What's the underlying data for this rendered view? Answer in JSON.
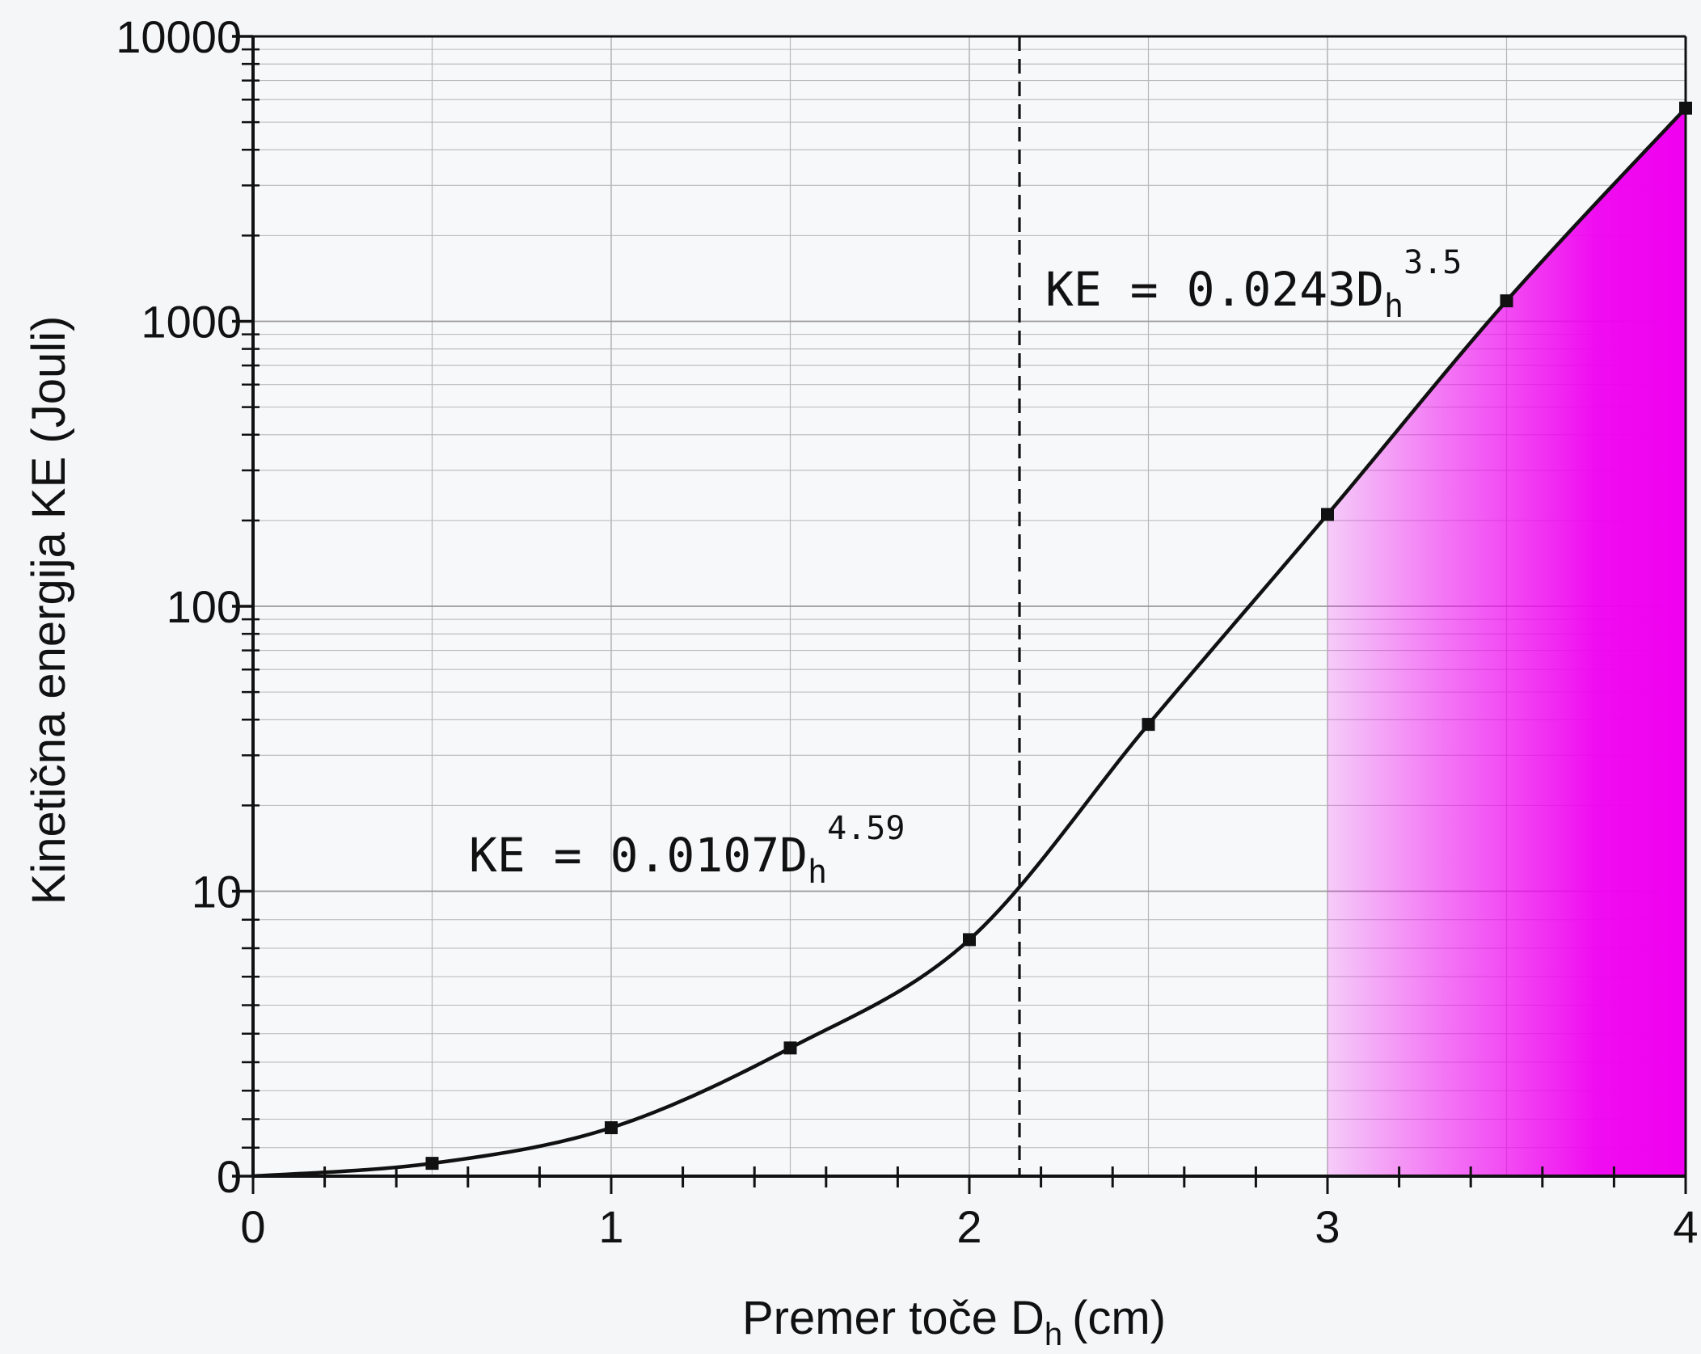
{
  "chart_data": {
    "type": "line",
    "title": "",
    "xlabel": "Premer toče D",
    "xlabel_sub": "h",
    "xlabel_unit": "(cm)",
    "ylabel": "Kinetična energija KE (Jouli)",
    "xlim": [
      0,
      4
    ],
    "ylim": [
      0,
      10000
    ],
    "y_scale": "log-with-zero",
    "grid": true,
    "x_ticks": [
      0,
      1,
      2,
      3,
      4
    ],
    "x_tick_labels": [
      "0",
      "1",
      "2",
      "3",
      "4"
    ],
    "y_ticks": [
      0,
      10,
      100,
      1000,
      10000
    ],
    "y_tick_labels": [
      "0",
      "10",
      "100",
      "1000",
      "10000"
    ],
    "series": [
      {
        "points": [
          {
            "x": 0.5,
            "y": 0.45
          },
          {
            "x": 1.0,
            "y": 1.7
          },
          {
            "x": 1.5,
            "y": 4.5
          },
          {
            "x": 2.0,
            "y": 8.3
          },
          {
            "x": 2.5,
            "y": 38.5
          },
          {
            "x": 3.0,
            "y": 210
          },
          {
            "x": 3.5,
            "y": 1180
          },
          {
            "x": 4.0,
            "y": 5600
          }
        ]
      }
    ],
    "threshold_x": 2.14,
    "shaded_region": {
      "x_from": 3.0,
      "x_to": 4.0,
      "color": "#f000f0"
    },
    "annotations": [
      {
        "name": "equation-small-hail",
        "prefix": "KE = 0.0107D",
        "sub": "h",
        "sup": "4.59"
      },
      {
        "name": "equation-large-hail",
        "prefix": "KE = 0.0243D",
        "sub": "h",
        "sup": "3.5"
      }
    ],
    "colors": {
      "line": "#111111",
      "grid": "#b8b8b8",
      "shade": "#f000f0"
    }
  }
}
